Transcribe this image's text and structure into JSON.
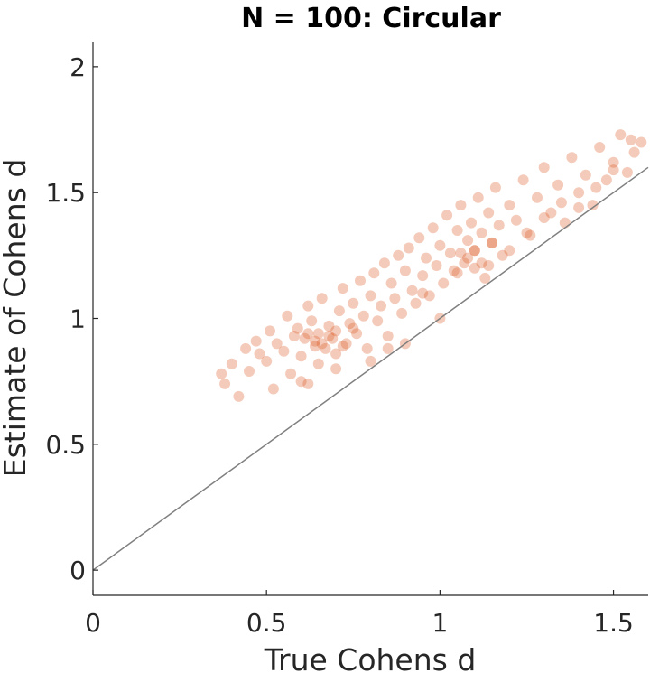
{
  "chart_data": {
    "type": "scatter",
    "title": "N = 100: Circular",
    "xlabel": "True Cohens d",
    "ylabel": "Estimate of Cohens d",
    "xlim": [
      0,
      1.6
    ],
    "ylim": [
      -0.1,
      2.1
    ],
    "x_ticks": [
      0,
      0.5,
      1,
      1.5
    ],
    "x_tick_labels": [
      "0",
      "0.5",
      "1",
      "1.5"
    ],
    "y_ticks": [
      0,
      0.5,
      1,
      1.5,
      2
    ],
    "y_tick_labels": [
      "0",
      "0.5",
      "1",
      "1.5",
      "2"
    ],
    "grid": false,
    "legend": "none",
    "colors": {
      "points": "#d95319",
      "identity_line": "#808080",
      "axes": "#262626"
    },
    "reference_line": {
      "type": "identity",
      "x": [
        0,
        1.6
      ],
      "y": [
        0,
        1.6
      ]
    },
    "series": [
      {
        "point_opacity": 0.3,
        "x": [
          0.37,
          0.38,
          0.4,
          0.42,
          0.44,
          0.45,
          0.47,
          0.48,
          0.5,
          0.51,
          0.52,
          0.53,
          0.55,
          0.56,
          0.57,
          0.58,
          0.59,
          0.6,
          0.61,
          0.62,
          0.62,
          0.63,
          0.64,
          0.65,
          0.66,
          0.67,
          0.68,
          0.69,
          0.7,
          0.71,
          0.72,
          0.73,
          0.74,
          0.75,
          0.76,
          0.77,
          0.78,
          0.79,
          0.8,
          0.81,
          0.82,
          0.83,
          0.84,
          0.85,
          0.86,
          0.87,
          0.88,
          0.89,
          0.9,
          0.91,
          0.92,
          0.93,
          0.94,
          0.95,
          0.96,
          0.97,
          0.98,
          0.99,
          1.0,
          1.01,
          1.02,
          1.03,
          1.04,
          1.05,
          1.06,
          1.07,
          1.08,
          1.09,
          1.1,
          1.11,
          1.12,
          1.13,
          1.14,
          1.15,
          1.16,
          1.17,
          1.18,
          1.2,
          1.22,
          1.24,
          1.26,
          1.28,
          1.3,
          1.32,
          1.34,
          1.36,
          1.38,
          1.4,
          1.42,
          1.44,
          1.46,
          1.48,
          1.5,
          1.52,
          1.54,
          1.56,
          1.58,
          0.6,
          0.65,
          0.7,
          0.75,
          0.8,
          0.85,
          0.9,
          0.95,
          1.0,
          1.05,
          1.1,
          1.15,
          1.2,
          1.25,
          1.3,
          1.35,
          1.4,
          1.45,
          1.5,
          1.55,
          0.66,
          0.68,
          0.7,
          0.72,
          0.64,
          0.62,
          1.08,
          1.1,
          1.12,
          1.06,
          1.14
        ],
        "y": [
          0.78,
          0.74,
          0.82,
          0.69,
          0.88,
          0.79,
          0.91,
          0.86,
          0.83,
          0.95,
          0.72,
          0.9,
          0.87,
          1.01,
          0.78,
          0.93,
          0.96,
          0.85,
          0.92,
          1.05,
          0.74,
          0.99,
          0.89,
          0.94,
          1.08,
          0.88,
          0.97,
          0.92,
          0.86,
          1.03,
          1.12,
          0.9,
          0.98,
          1.06,
          0.94,
          1.15,
          1.01,
          0.88,
          1.09,
          1.18,
          0.99,
          1.05,
          1.22,
          0.93,
          1.14,
          1.08,
          1.25,
          1.02,
          1.19,
          1.28,
          1.11,
          1.06,
          1.32,
          1.17,
          1.24,
          1.09,
          1.36,
          1.21,
          1.29,
          1.14,
          1.41,
          1.26,
          1.19,
          1.35,
          1.45,
          1.22,
          1.31,
          1.38,
          1.27,
          1.48,
          1.34,
          1.16,
          1.42,
          1.3,
          1.52,
          1.37,
          1.25,
          1.45,
          1.39,
          1.55,
          1.33,
          1.48,
          1.6,
          1.42,
          1.53,
          1.38,
          1.64,
          1.5,
          1.57,
          1.45,
          1.68,
          1.55,
          1.62,
          1.73,
          1.58,
          1.66,
          1.7,
          0.75,
          0.82,
          0.8,
          0.96,
          0.83,
          0.88,
          0.9,
          1.1,
          1.0,
          1.18,
          1.2,
          1.3,
          1.27,
          1.34,
          1.4,
          1.46,
          1.44,
          1.52,
          1.59,
          1.71,
          0.9,
          0.93,
          0.95,
          0.89,
          0.91,
          0.94,
          1.24,
          1.27,
          1.22,
          1.26,
          1.21
        ]
      }
    ]
  }
}
